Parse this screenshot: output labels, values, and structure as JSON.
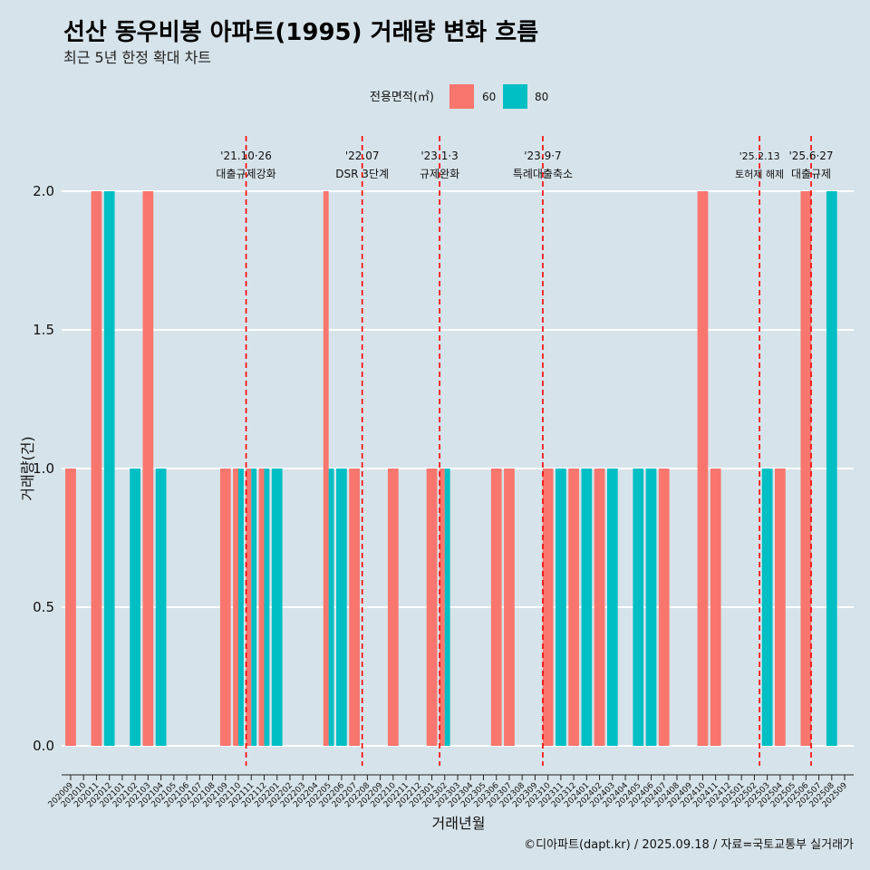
{
  "title": "선산 동우비봉 아파트(1995) 거래량 변화 흐름",
  "subtitle": "최근 5년 한정 확대 차트",
  "legend": {
    "title": "전용면적(㎡)",
    "items": [
      {
        "label": "60",
        "color": "#f8766d"
      },
      {
        "label": "80",
        "color": "#00bfc4"
      }
    ]
  },
  "caption": "©디아파트(dapt.kr) / 2025.09.18 / 자료=국토교통부 실거래가",
  "chart_data": {
    "type": "bar",
    "title": "선산 동우비봉 아파트(1995) 거래량 변화 흐름",
    "subtitle": "최근 5년 한정 확대 차트",
    "xlabel": "거래년월",
    "ylabel": "거래량(건)",
    "ylim": [
      0,
      2
    ],
    "yticks": [
      "0.0",
      "0.5",
      "1.0",
      "1.5",
      "2.0"
    ],
    "grid": true,
    "legend_position": "top",
    "categories": [
      "202009",
      "202010",
      "202011",
      "202012",
      "202101",
      "202102",
      "202103",
      "202104",
      "202105",
      "202106",
      "202107",
      "202108",
      "202109",
      "202110",
      "202111",
      "202112",
      "202201",
      "202202",
      "202203",
      "202204",
      "202205",
      "202206",
      "202207",
      "202208",
      "202209",
      "202210",
      "202211",
      "202212",
      "202301",
      "202302",
      "202303",
      "202304",
      "202305",
      "202306",
      "202307",
      "202308",
      "202309",
      "202310",
      "202311",
      "202312",
      "202401",
      "202402",
      "202403",
      "202404",
      "202405",
      "202406",
      "202407",
      "202408",
      "202409",
      "202410",
      "202411",
      "202412",
      "202501",
      "202502",
      "202503",
      "202504",
      "202505",
      "202506",
      "202507",
      "202508",
      "202509"
    ],
    "series": [
      {
        "name": "60",
        "color": "#f8766d",
        "values": [
          1,
          0,
          2,
          0,
          0,
          0,
          2,
          0,
          0,
          0,
          0,
          0,
          1,
          1,
          1,
          1,
          0,
          0,
          0,
          0,
          2,
          0,
          1,
          0,
          0,
          1,
          0,
          0,
          1,
          1,
          0,
          0,
          0,
          1,
          1,
          0,
          0,
          1,
          0,
          1,
          0,
          1,
          0,
          0,
          0,
          0,
          1,
          0,
          0,
          2,
          1,
          0,
          0,
          0,
          0,
          1,
          0,
          2,
          0,
          0,
          0
        ]
      },
      {
        "name": "80",
        "color": "#00bfc4",
        "values": [
          0,
          0,
          0,
          2,
          0,
          1,
          0,
          1,
          0,
          0,
          0,
          0,
          0,
          1,
          1,
          1,
          1,
          0,
          0,
          0,
          1,
          1,
          0,
          0,
          0,
          0,
          0,
          0,
          0,
          1,
          0,
          0,
          0,
          0,
          0,
          0,
          0,
          0,
          1,
          0,
          1,
          0,
          1,
          0,
          1,
          1,
          0,
          0,
          0,
          0,
          0,
          0,
          0,
          0,
          1,
          0,
          0,
          0,
          0,
          2,
          0
        ]
      }
    ],
    "events": [
      {
        "label1": "'21.10·26",
        "label2": "대출규제강화",
        "at": 13.6,
        "small": false
      },
      {
        "label1": "'22.07",
        "label2": "DSR 3단계",
        "at": 22.6,
        "small": false
      },
      {
        "label1": "'23.1·3",
        "label2": "규제완화",
        "at": 28.6,
        "small": false
      },
      {
        "label1": "'23.9·7",
        "label2": "특례대출축소",
        "at": 36.6,
        "small": false
      },
      {
        "label1": "'25.2.13",
        "label2": "토허제 해제",
        "at": 53.4,
        "small": true
      },
      {
        "label1": "'25.6·27",
        "label2": "대출규제",
        "at": 57.4,
        "small": false
      }
    ]
  }
}
